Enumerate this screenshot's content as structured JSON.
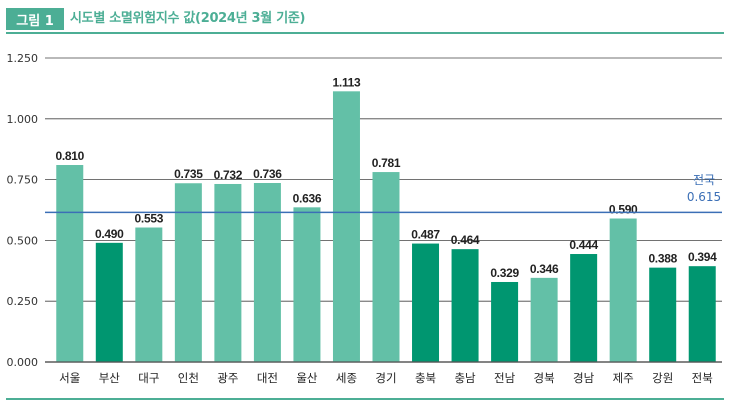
{
  "figure": {
    "label": "그림 1",
    "title": "시도별 소멸위험지수 값(2024년 3월 기준)"
  },
  "colors": {
    "light": "#63c0a7",
    "dark": "#009670",
    "reference": "#3b6fb6",
    "accent": "#4cae95"
  },
  "chart_data": {
    "type": "bar",
    "categories": [
      "서울",
      "부산",
      "대구",
      "인천",
      "광주",
      "대전",
      "울산",
      "세종",
      "경기",
      "충북",
      "충남",
      "전남",
      "경북",
      "경남",
      "제주",
      "강원",
      "전북"
    ],
    "values": [
      0.81,
      0.49,
      0.553,
      0.735,
      0.732,
      0.736,
      0.636,
      1.113,
      0.781,
      0.487,
      0.464,
      0.329,
      0.346,
      0.444,
      0.59,
      0.388,
      0.394
    ],
    "value_labels": [
      "0.810",
      "0.490",
      "0.553",
      "0.735",
      "0.732",
      "0.736",
      "0.636",
      "1.113",
      "0.781",
      "0.487",
      "0.464",
      "0.329",
      "0.346",
      "0.444",
      "0.590",
      "0.388",
      "0.394"
    ],
    "bar_shade": [
      "light",
      "dark",
      "light",
      "light",
      "light",
      "light",
      "light",
      "light",
      "light",
      "dark",
      "dark",
      "dark",
      "light",
      "dark",
      "light",
      "dark",
      "dark"
    ],
    "yticks": [
      0,
      0.25,
      0.5,
      0.75,
      1.0,
      1.25
    ],
    "ytick_labels": [
      "0.000",
      "0.250",
      "0.500",
      "0.750",
      "1.000",
      "1.250"
    ],
    "ylim": [
      0,
      1.25
    ],
    "reference": {
      "value": 0.615,
      "label": "전국",
      "value_label": "0.615"
    },
    "grid": true,
    "xlabel": "",
    "ylabel": ""
  }
}
